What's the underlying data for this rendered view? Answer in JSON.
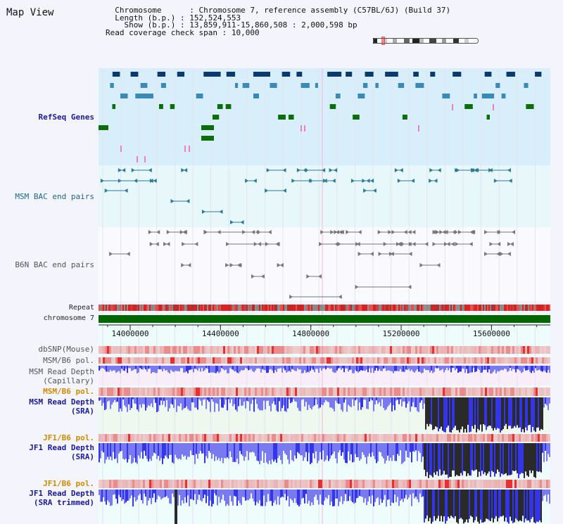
{
  "title": "Map View",
  "info": {
    "chromosome_key": "Chromosome",
    "chromosome_value": "Chromosome 7, reference assembly (C57BL/6J) (Build 37)",
    "length_key": "Length (b.p.)",
    "length_value": "152,524,553",
    "show_key": "Show (b.p.)",
    "show_value": "13,859,911-15,860,508 : 2,000,598 bp",
    "span_key": "Read coverage check span",
    "span_value": "10,000"
  },
  "tracks": {
    "refseq": "RefSeq Genes",
    "msm_bac": "MSM BAC end pairs",
    "b6n_bac": "B6N BAC end pairs",
    "repeat": "Repeat",
    "chromosome": "chromosome 7",
    "dbsnp": "dbSNP(Mouse)",
    "msm_b6_pol_1": "MSM/B6 pol.",
    "msm_depth_cap_1": "MSM Read Depth",
    "msm_depth_cap_2": "(Capillary)",
    "msm_b6_pol_2": "MSM/B6 pol.",
    "msm_depth_sra_1": "MSM Read Depth",
    "msm_depth_sra_2": "(SRA)",
    "jf1_b6_pol_1": "JF1/B6 pol.",
    "jf1_depth_sra_1": "JF1 Read Depth",
    "jf1_depth_sra_2": "(SRA)",
    "jf1_b6_pol_2": "JF1/B6 pol.",
    "jf1_depth_trim_1": "JF1 Read Depth",
    "jf1_depth_trim_2": "(SRA trimmed)"
  },
  "axis": {
    "ticks": [
      "14000000",
      "14400000",
      "14800000",
      "15200000",
      "15600000"
    ],
    "tick_values": [
      14000000,
      14400000,
      14800000,
      15200000,
      15600000
    ],
    "range": [
      13859911,
      15860508
    ]
  },
  "colors": {
    "gene_dark": "#0a3a6e",
    "gene_mid": "#3a8ab8",
    "gene_green": "#0a6e0a",
    "refseq_bg": "#d8eefa",
    "msm_bac_bg": "#e8f8fa",
    "bac_teal": "#2a7a9a",
    "bac_gray": "#777777",
    "chrom_green": "#006600",
    "depth_blue": "#3535e8",
    "depth_light": "#7a7af0",
    "depth_dark": "#2a2a2a",
    "pol_red": "#e83030"
  }
}
